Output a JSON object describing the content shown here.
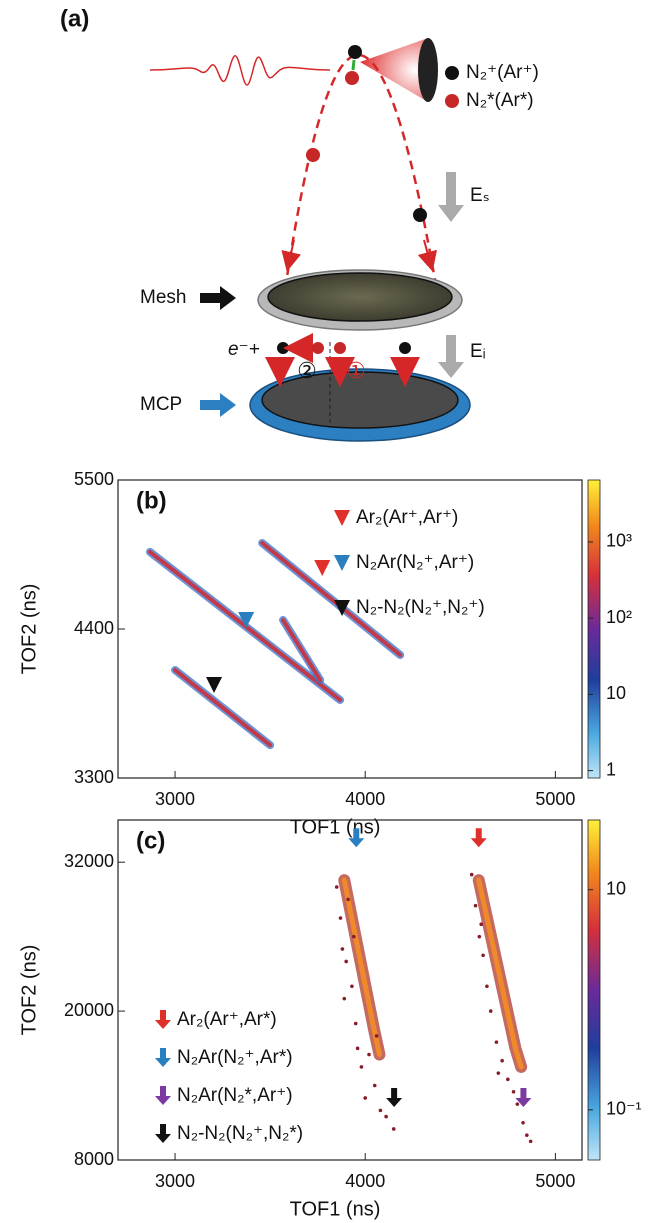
{
  "panel_a": {
    "label": "(a)",
    "legend": [
      "N₂⁺(Ar⁺)",
      "N₂*(Ar*)"
    ],
    "field_s": "Eₛ",
    "field_i": "Eᵢ",
    "mesh": "Mesh",
    "mcp": "MCP",
    "electron": "e⁻+",
    "path_1": "①",
    "path_2": "②"
  },
  "chart_data": [
    {
      "type": "coincidence-map",
      "panel_label": "(b)",
      "xlabel": "TOF1 (ns)",
      "ylabel": "TOF2 (ns)",
      "xlim": [
        2700,
        5140
      ],
      "xticks": [
        3000,
        4000,
        5000
      ],
      "ylim": [
        3300,
        5500
      ],
      "yticks": [
        3300,
        4400,
        5500
      ],
      "clim": [
        0.8,
        6500
      ],
      "clog": true,
      "cticks": [
        1,
        10,
        {
          "value": 100,
          "label": "10²"
        },
        {
          "value": 1000,
          "label": "10³"
        }
      ],
      "marker": "triangle",
      "legend": "upper right",
      "stripes": [
        {
          "x": [
            2868,
            3868
          ],
          "y": [
            4969,
            3876
          ]
        },
        {
          "x": [
            3458,
            4184
          ],
          "y": [
            5035,
            4208
          ]
        },
        {
          "x": [
            3568,
            3763
          ],
          "y": [
            4466,
            4024
          ]
        },
        {
          "x": [
            3000,
            3500
          ],
          "y": [
            4097,
            3543
          ]
        }
      ],
      "series": [
        {
          "name": "Ar₂(Ar⁺,Ar⁺)",
          "color": "#e0302a",
          "x": [
            3774
          ],
          "y": [
            4850
          ]
        },
        {
          "name": "N₂Ar(N₂⁺,Ar⁺)",
          "color": "#2a7fc0",
          "x": [
            3374
          ],
          "y": [
            4466
          ]
        },
        {
          "name": "N₂-N₂(N₂⁺,N₂⁺)",
          "color": "#111111",
          "x": [
            3205
          ],
          "y": [
            3987
          ]
        }
      ]
    },
    {
      "type": "coincidence-map",
      "panel_label": "(c)",
      "xlabel": "TOF1 (ns)",
      "ylabel": "TOF2 (ns)",
      "xlim": [
        2700,
        5140
      ],
      "xticks": [
        3000,
        4000,
        5000
      ],
      "ylim": [
        8000,
        35400
      ],
      "yticks": [
        8000,
        20000,
        32000
      ],
      "clim": [
        0.035,
        43
      ],
      "clog": true,
      "cticks": [
        {
          "value": 0.1,
          "label": "10⁻¹"
        },
        10
      ],
      "marker": "arrow",
      "legend": "lower left",
      "stripes": [
        {
          "x": [
            3890,
            4047,
            4075
          ],
          "y": [
            30550,
            18470,
            16500
          ]
        },
        {
          "x": [
            4597,
            4790,
            4820
          ],
          "y": [
            30550,
            17000,
            15500
          ]
        }
      ],
      "points": [
        {
          "x": [
            3850,
            3870,
            3880,
            3900,
            3910,
            3930,
            3950,
            3960,
            3980,
            4000,
            4020,
            4050,
            4080,
            4110,
            4150,
            3890,
            3940,
            4060
          ],
          "y": [
            30000,
            27500,
            25000,
            24000,
            29000,
            22000,
            19000,
            17000,
            15500,
            13000,
            16500,
            14000,
            12000,
            11500,
            10500,
            21000,
            26000,
            18000
          ]
        },
        {
          "x": [
            4560,
            4580,
            4600,
            4620,
            4640,
            4660,
            4690,
            4720,
            4750,
            4780,
            4800,
            4830,
            4850,
            4870,
            4610,
            4700
          ],
          "y": [
            31000,
            28500,
            26000,
            24500,
            22000,
            20000,
            17500,
            16000,
            14500,
            13500,
            12500,
            11000,
            10000,
            9500,
            27000,
            15000
          ]
        }
      ],
      "series": [
        {
          "name": "Ar₂(Ar⁺,Ar*)",
          "color": "#e0302a",
          "x": [
            4597
          ],
          "y": [
            33930
          ]
        },
        {
          "name": "N₂Ar(N₂⁺,Ar*)",
          "color": "#2a7fc0",
          "x": [
            3953
          ],
          "y": [
            33930
          ]
        },
        {
          "name": "N₂Ar(N₂*,Ar⁺)",
          "color": "#7a3aa0",
          "x": [
            4832
          ],
          "y": [
            13000
          ]
        },
        {
          "name": "N₂-N₂(N₂⁺,N₂*)",
          "color": "#111111",
          "x": [
            4152
          ],
          "y": [
            13000
          ]
        }
      ]
    }
  ]
}
